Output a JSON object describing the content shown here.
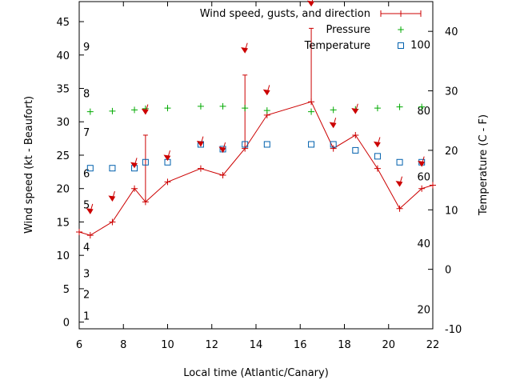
{
  "chart_data": {
    "type": "line",
    "xlabel": "Local time (Atlantic/Canary)",
    "ylabel_left": "Wind speed (kt - Beaufort)",
    "ylabel_right": "Temperature (C - F)",
    "xlim": [
      6,
      22
    ],
    "ylim_left": [
      -1,
      48
    ],
    "ylim_right": [
      -10,
      45
    ],
    "x_ticks": [
      "6",
      "8",
      "10",
      "12",
      "14",
      "16",
      "18",
      "20",
      "22"
    ],
    "y_ticks_left": [
      "0",
      "5",
      "10",
      "15",
      "20",
      "25",
      "30",
      "35",
      "40",
      "45"
    ],
    "y_ticks_right": [
      "-10",
      "0",
      "10",
      "20",
      "30",
      "40"
    ],
    "beaufort_labels": [
      {
        "text": "1",
        "kt": 1
      },
      {
        "text": "2",
        "kt": 4.2
      },
      {
        "text": "3",
        "kt": 7.3
      },
      {
        "text": "4",
        "kt": 11.3
      },
      {
        "text": "5",
        "kt": 17.6
      },
      {
        "text": "6",
        "kt": 22.3
      },
      {
        "text": "7",
        "kt": 28.5
      },
      {
        "text": "8",
        "kt": 34.3
      },
      {
        "text": "9",
        "kt": 41.3
      }
    ],
    "fahrenheit_labels": [
      {
        "text": "20",
        "c": -6.7
      },
      {
        "text": "40",
        "c": 4.4
      },
      {
        "text": "60",
        "c": 15.6
      },
      {
        "text": "80",
        "c": 26.7
      },
      {
        "text": "100",
        "c": 37.8
      }
    ],
    "legend": {
      "wind": "Wind speed, gusts, and direction",
      "pressure": "Pressure",
      "temperature": "Temperature"
    },
    "series": [
      {
        "name": "Wind speed, gusts, and direction",
        "axis": "left",
        "color": "#cc0000",
        "x": [
          6,
          6.5,
          7.5,
          8.5,
          9,
          10,
          11.5,
          12.5,
          13.5,
          14.5,
          16.5,
          17.5,
          18.5,
          19.5,
          20.5,
          21.5,
          22
        ],
        "y": [
          13.5,
          13,
          15,
          20,
          18,
          21,
          23,
          22,
          26,
          31,
          33,
          26,
          28,
          23,
          17,
          20,
          20.5
        ],
        "gust_x": [
          9,
          13.5,
          16.5
        ],
        "gust_top": [
          28,
          37,
          44
        ]
      },
      {
        "name": "Pressure",
        "axis": "right",
        "color": "#00aa00",
        "x": [
          6.5,
          7.5,
          8.5,
          9,
          10,
          11.5,
          12.5,
          13.5,
          14.5,
          16.5,
          17.5,
          18.5,
          19.5,
          20.5,
          21.5
        ],
        "y": [
          26.5,
          26.6,
          26.8,
          27,
          27.1,
          27.4,
          27.4,
          27.1,
          26.7,
          26.5,
          26.8,
          26.9,
          27.1,
          27.3,
          27.3
        ]
      },
      {
        "name": "Temperature",
        "axis": "right",
        "color": "#0060ad",
        "x": [
          6.5,
          7.5,
          8.5,
          9,
          10,
          11.5,
          12.5,
          13.5,
          14.5,
          16.5,
          17.5,
          18.5,
          19.5,
          20.5,
          21.5
        ],
        "y": [
          17,
          17,
          17,
          18,
          18,
          21,
          20.2,
          21,
          21,
          21,
          21,
          20,
          19,
          18,
          18
        ]
      }
    ],
    "direction_arrows": [
      {
        "x": 6.5,
        "kt": 16.5
      },
      {
        "x": 7.5,
        "kt": 18.4
      },
      {
        "x": 8.5,
        "kt": 23.4
      },
      {
        "x": 9,
        "kt": 31.4
      },
      {
        "x": 10,
        "kt": 24.5
      },
      {
        "x": 11.5,
        "kt": 26.6
      },
      {
        "x": 12.5,
        "kt": 25.7
      },
      {
        "x": 13.5,
        "kt": 40.6
      },
      {
        "x": 14.5,
        "kt": 34.3
      },
      {
        "x": 16.5,
        "kt": 47.6
      },
      {
        "x": 17.5,
        "kt": 29.4
      },
      {
        "x": 18.5,
        "kt": 31.5
      },
      {
        "x": 19.5,
        "kt": 26.5
      },
      {
        "x": 20.5,
        "kt": 20.6
      },
      {
        "x": 21.5,
        "kt": 23.6
      }
    ]
  }
}
